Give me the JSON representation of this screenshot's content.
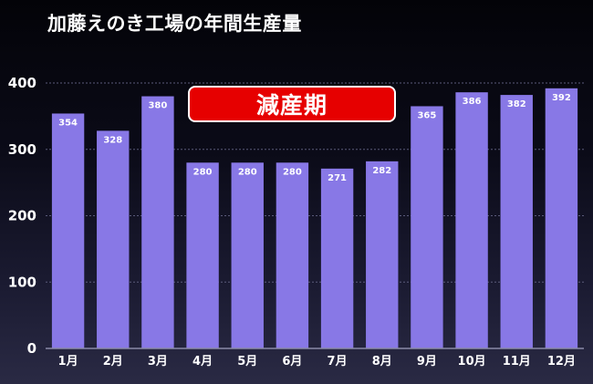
{
  "chart_data": {
    "type": "bar",
    "title": "加藤えのき工場の年間生産量",
    "categories": [
      "1月",
      "2月",
      "3月",
      "4月",
      "5月",
      "6月",
      "7月",
      "8月",
      "9月",
      "10月",
      "11月",
      "12月"
    ],
    "values": [
      354,
      328,
      380,
      280,
      280,
      280,
      271,
      282,
      365,
      386,
      382,
      392
    ],
    "ylim": [
      0,
      400
    ],
    "yticks": [
      0,
      100,
      200,
      300,
      400
    ],
    "grid": true,
    "bar_color": "#8878e6",
    "annotation": {
      "text": "減産期",
      "color": "#e60000"
    }
  }
}
